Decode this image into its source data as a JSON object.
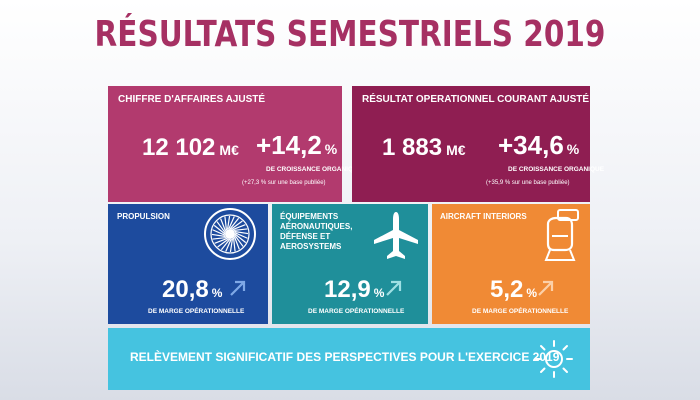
{
  "title": "RÉSULTATS SEMESTRIELS 2019",
  "colors": {
    "title": "#a63063",
    "revenue_panel": "#b23a6e",
    "result_panel": "#8f1e52",
    "propulsion_panel": "#1d4b9e",
    "equipment_panel": "#1f8f9a",
    "aircraft_panel": "#f08a35",
    "banner": "#45c3e0"
  },
  "revenue": {
    "label": "CHIFFRE D'AFFAIRES AJUSTÉ",
    "amount": "12 102",
    "unit": "M€",
    "growth": "+14,2",
    "growth_unit": "%",
    "growth_caption": "DE CROISSANCE ORGANIQUE",
    "note": "(+27,3 % sur une base publiée)"
  },
  "operating_result": {
    "label": "RÉSULTAT OPERATIONNEL COURANT AJUSTÉ",
    "amount": "1 883",
    "unit": "M€",
    "growth": "+34,6",
    "growth_unit": "%",
    "growth_caption": "DE CROISSANCE ORGANIQUE",
    "note": "(+35,9 % sur une base publiée)"
  },
  "segments": [
    {
      "name": "PROPULSION",
      "margin": "20,8",
      "unit": "%",
      "caption": "DE MARGE OPÉRATIONNELLE",
      "icon": "turbine-icon"
    },
    {
      "name": "ÉQUIPEMENTS AÉRONAUTIQUES, DÉFENSE ET AEROSYSTEMS",
      "margin": "12,9",
      "unit": "%",
      "caption": "DE MARGE OPÉRATIONNELLE",
      "icon": "airplane-icon"
    },
    {
      "name": "AIRCRAFT INTERIORS",
      "margin": "5,2",
      "unit": "%",
      "caption": "DE MARGE OPÉRATIONNELLE",
      "icon": "seat-icon"
    }
  ],
  "banner": {
    "text": "RELÈVEMENT SIGNIFICATIF DES PERSPECTIVES POUR L'EXERCICE 2019",
    "icon": "sun-icon"
  }
}
